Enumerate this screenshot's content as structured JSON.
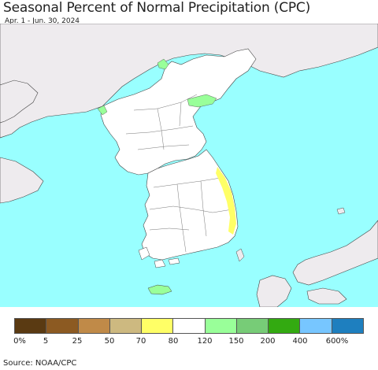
{
  "header": {
    "title": "Seasonal Percent of Normal Precipitation (CPC)",
    "subtitle": "Apr. 1 - Jun. 30, 2024"
  },
  "colors": {
    "ocean": "#99ffff",
    "land_outside": "#eeebee",
    "korea_land": "#ffffff",
    "border": "#444444"
  },
  "legend": {
    "colors": [
      "#5a3a12",
      "#8c5a22",
      "#c08a48",
      "#cdb980",
      "#ffff66",
      "#ffffff",
      "#99ff99",
      "#77cc77",
      "#33aa11",
      "#77c6ff",
      "#1e7fbf"
    ],
    "labels": [
      "0%",
      "5",
      "25",
      "50",
      "70",
      "80",
      "120",
      "150",
      "200",
      "400",
      "600%"
    ]
  },
  "footer": {
    "source": "Source: NOAA/CPC"
  }
}
